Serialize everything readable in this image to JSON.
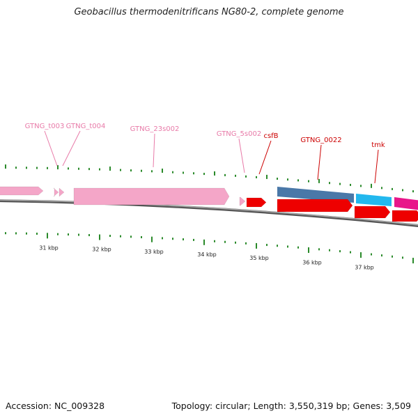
{
  "title": "Geobacillus thermodenitrificans NG80-2, complete genome",
  "footer": {
    "accession": "Accession: NC_009328",
    "summary": "Topology: circular; Length: 3,550,319 bp; Genes: 3,509"
  },
  "colors": {
    "rrna": "#f4a6c8",
    "rrna_label": "#e87aa8",
    "cds": "#ee0000",
    "cds_label": "#cc0000",
    "gene_blue": "#4a78a8",
    "gene_cyan": "#22b8ee",
    "gene_magenta": "#e8168a",
    "tick": "#2a8a2a",
    "backbone": "#777777"
  },
  "kbp_labels": [
    "31 kbp",
    "32 kbp",
    "33 kbp",
    "34 kbp",
    "35 kbp",
    "36 kbp",
    "37 kbp"
  ],
  "gene_labels": [
    {
      "id": "t003",
      "text": "GTNG_t003",
      "kind": "rrna"
    },
    {
      "id": "t004",
      "text": "GTNG_t004",
      "kind": "rrna"
    },
    {
      "id": "23s002",
      "text": "GTNG_23s002",
      "kind": "rrna"
    },
    {
      "id": "5s002",
      "text": "GTNG_5s002",
      "kind": "rrna"
    },
    {
      "id": "csfb",
      "text": "csfB",
      "kind": "cds"
    },
    {
      "id": "gtng0022",
      "text": "GTNG_0022",
      "kind": "cds"
    },
    {
      "id": "tmk",
      "text": "tmk",
      "kind": "cds"
    }
  ]
}
